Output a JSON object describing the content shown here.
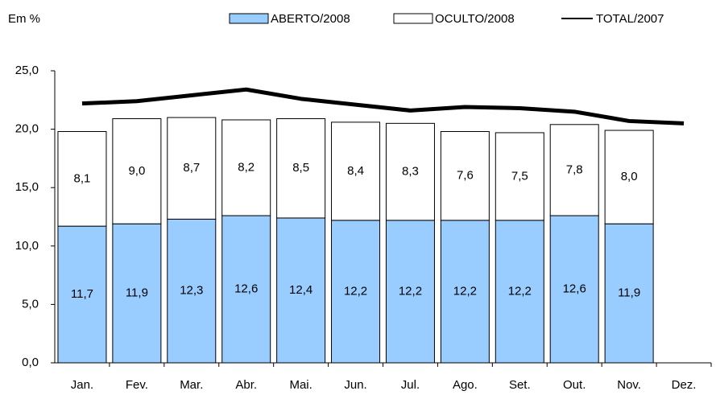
{
  "chart_data": {
    "type": "stacked-bar-line",
    "title": "Em %",
    "categories": [
      "Jan.",
      "Fev.",
      "Mar.",
      "Abr.",
      "Mai.",
      "Jun.",
      "Jul.",
      "Ago.",
      "Set.",
      "Out.",
      "Nov.",
      "Dez."
    ],
    "series": [
      {
        "name": "ABERTO/2008",
        "color": "#99ccff",
        "kind": "bar",
        "values": [
          11.7,
          11.9,
          12.3,
          12.6,
          12.4,
          12.2,
          12.2,
          12.2,
          12.2,
          12.6,
          11.9,
          null
        ],
        "value_labels": [
          "11,7",
          "11,9",
          "12,3",
          "12,6",
          "12,4",
          "12,2",
          "12,2",
          "12,2",
          "12,2",
          "12,6",
          "11,9",
          null
        ]
      },
      {
        "name": "OCULTO/2008",
        "color": "#ffffff",
        "kind": "bar",
        "values": [
          8.1,
          9.0,
          8.7,
          8.2,
          8.5,
          8.4,
          8.3,
          7.6,
          7.5,
          7.8,
          8.0,
          null
        ],
        "value_labels": [
          "8,1",
          "9,0",
          "8,7",
          "8,2",
          "8,5",
          "8,4",
          "8,3",
          "7,6",
          "7,5",
          "7,8",
          "8,0",
          null
        ]
      },
      {
        "name": "TOTAL/2007",
        "color": "#000000",
        "kind": "line",
        "values": [
          22.2,
          22.4,
          22.9,
          23.4,
          22.6,
          22.1,
          21.6,
          21.9,
          21.8,
          21.5,
          20.7,
          20.5
        ]
      }
    ],
    "ylim": [
      0,
      25
    ],
    "yticks": [
      {
        "value": 0,
        "label": "0,0"
      },
      {
        "value": 5,
        "label": "5,0"
      },
      {
        "value": 10,
        "label": "10,0"
      },
      {
        "value": 15,
        "label": "15,0"
      },
      {
        "value": 20,
        "label": "20,0"
      },
      {
        "value": 25,
        "label": "25,0"
      }
    ]
  }
}
